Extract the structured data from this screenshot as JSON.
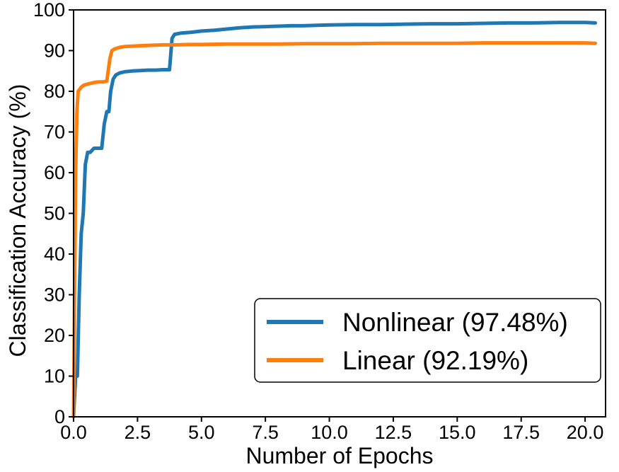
{
  "chart_data": {
    "type": "line",
    "xlabel": "Number of Epochs",
    "ylabel": "Classification Accuracy (%)",
    "xlim": [
      0,
      20.8
    ],
    "ylim": [
      0,
      100
    ],
    "xticks": [
      0.0,
      2.5,
      5.0,
      7.5,
      10.0,
      12.5,
      15.0,
      17.5,
      20.0
    ],
    "xtick_labels": [
      "0.0",
      "2.5",
      "5.0",
      "7.5",
      "10.0",
      "12.5",
      "15.0",
      "17.5",
      "20.0"
    ],
    "yticks": [
      0,
      10,
      20,
      30,
      40,
      50,
      60,
      70,
      80,
      90,
      100
    ],
    "ytick_labels": [
      "0",
      "10",
      "20",
      "30",
      "40",
      "50",
      "60",
      "70",
      "80",
      "90",
      "100"
    ],
    "grid": false,
    "legend_position": "lower-right",
    "series": [
      {
        "name": "Nonlinear",
        "label": "Nonlinear (97.48%)",
        "color": "#1f77b4",
        "x": [
          0.0,
          0.08,
          0.15,
          0.22,
          0.3,
          0.38,
          0.46,
          0.55,
          0.65,
          0.8,
          0.95,
          1.1,
          1.2,
          1.3,
          1.38,
          1.45,
          1.55,
          1.65,
          1.8,
          2.0,
          2.3,
          2.6,
          2.9,
          3.2,
          3.5,
          3.75,
          3.85,
          3.95,
          4.2,
          4.6,
          5.0,
          5.5,
          6.0,
          6.5,
          7.0,
          7.5,
          8.0,
          8.5,
          9.0,
          9.5,
          10.0,
          11.0,
          12.0,
          13.0,
          14.0,
          15.0,
          16.0,
          17.0,
          18.0,
          19.0,
          20.0,
          20.4
        ],
        "y": [
          0,
          10,
          10,
          30,
          45,
          50,
          62,
          65,
          65,
          66,
          66,
          66,
          72,
          75,
          75,
          80,
          83,
          84,
          84.5,
          84.8,
          85,
          85.1,
          85.2,
          85.2,
          85.3,
          85.3,
          93,
          94,
          94.3,
          94.5,
          94.8,
          95.0,
          95.3,
          95.6,
          95.8,
          95.9,
          96.0,
          96.1,
          96.1,
          96.2,
          96.3,
          96.4,
          96.4,
          96.5,
          96.6,
          96.6,
          96.7,
          96.8,
          96.8,
          96.9,
          96.9,
          96.8
        ]
      },
      {
        "name": "Linear",
        "label": "Linear (92.19%)",
        "color": "#ff7f0e",
        "x": [
          0.0,
          0.04,
          0.08,
          0.13,
          0.18,
          0.24,
          0.3,
          0.4,
          0.55,
          0.7,
          0.85,
          1.0,
          1.15,
          1.3,
          1.42,
          1.5,
          1.6,
          1.8,
          2.0,
          2.3,
          2.6,
          3.0,
          3.5,
          4.0,
          4.5,
          5.0,
          6.0,
          7.0,
          8.0,
          9.0,
          10.0,
          11.0,
          12.0,
          13.0,
          14.0,
          15.0,
          16.0,
          17.0,
          18.0,
          19.0,
          20.0,
          20.4
        ],
        "y": [
          0,
          30,
          60,
          75,
          80,
          80.5,
          81,
          81.5,
          81.8,
          82,
          82.2,
          82.3,
          82.3,
          82.5,
          88,
          90,
          90.4,
          90.8,
          91.0,
          91.1,
          91.2,
          91.3,
          91.4,
          91.4,
          91.5,
          91.5,
          91.6,
          91.6,
          91.6,
          91.7,
          91.7,
          91.7,
          91.8,
          91.8,
          91.8,
          91.8,
          91.9,
          91.9,
          91.9,
          91.9,
          91.9,
          91.8
        ]
      }
    ]
  }
}
